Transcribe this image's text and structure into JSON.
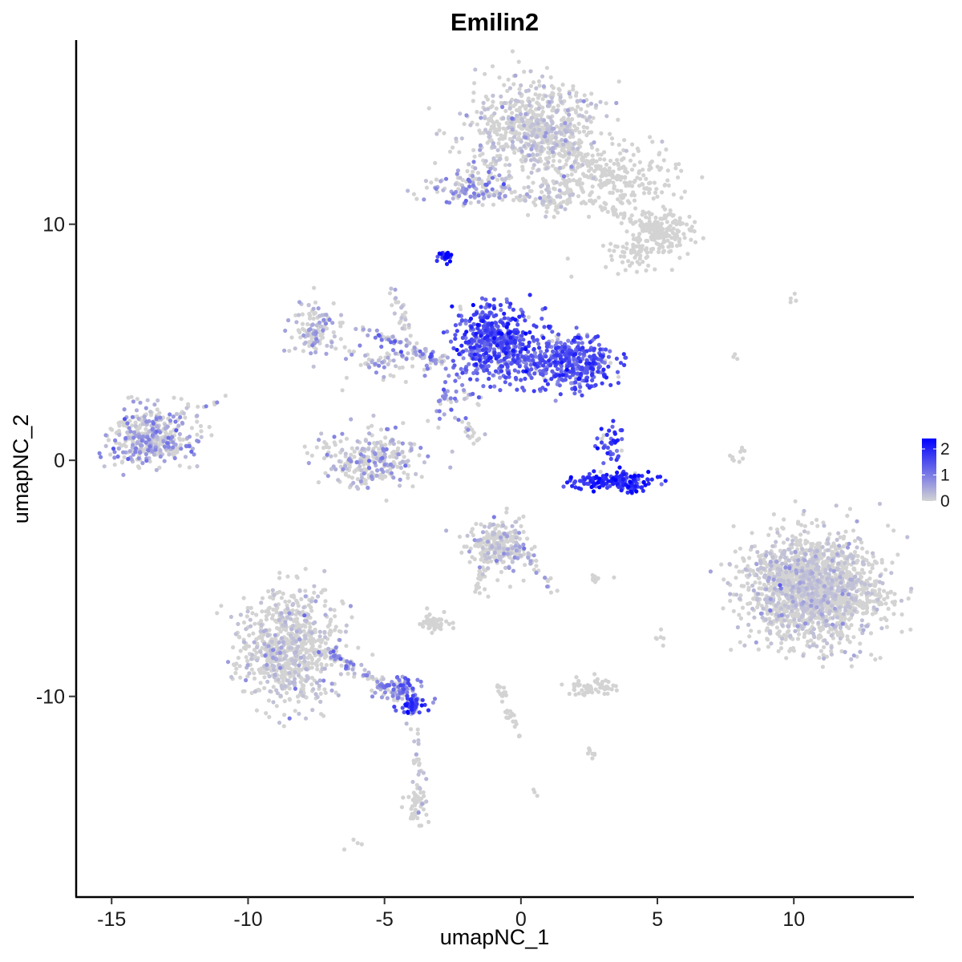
{
  "chart_data": {
    "type": "scatter",
    "title": "Emilin2",
    "xlabel": "umapNC_1",
    "ylabel": "umapNC_2",
    "xlim": [
      -16.3,
      14.4
    ],
    "ylim": [
      -18.5,
      17.8
    ],
    "x_ticks": [
      -15,
      -10,
      -5,
      0,
      5,
      10
    ],
    "x_tick_labels": [
      "-15",
      "-10",
      "-5",
      "0",
      "5",
      "10"
    ],
    "y_ticks": [
      -10,
      0,
      10
    ],
    "y_tick_labels": [
      "-10",
      "0",
      "10"
    ],
    "grid": false,
    "legend": {
      "position": "right",
      "type": "colorbar",
      "range": [
        0,
        2.4
      ],
      "ticks": [
        0,
        1,
        2
      ],
      "tick_labels": [
        "0",
        "1",
        "2"
      ],
      "low_color": "#d3d3d3",
      "high_color": "#0000ff"
    },
    "clusters": [
      {
        "cx": 0.5,
        "cy": 14,
        "sx": 1.2,
        "sy": 1.1,
        "n": 700,
        "expr": 0.05
      },
      {
        "cx": 1.2,
        "cy": 11.2,
        "sx": 0.5,
        "sy": 0.4,
        "n": 80,
        "expr": 0.05
      },
      {
        "cx": 3.5,
        "cy": 12.0,
        "sx": 1.2,
        "sy": 0.7,
        "n": 200,
        "expr": 0.0
      },
      {
        "cx": 5.2,
        "cy": 9.6,
        "sx": 0.6,
        "sy": 0.5,
        "n": 150,
        "expr": 0.0
      },
      {
        "cx": 4.2,
        "cy": 8.9,
        "sx": 0.6,
        "sy": 0.4,
        "n": 60,
        "expr": 0.0
      },
      {
        "cx": -2.0,
        "cy": 11.6,
        "sx": 0.8,
        "sy": 0.4,
        "n": 120,
        "expr": 0.6
      },
      {
        "cx": -2.8,
        "cy": 8.6,
        "sx": 0.15,
        "sy": 0.15,
        "n": 25,
        "expr": 2.0
      },
      {
        "cx": -7.5,
        "cy": 5.6,
        "sx": 0.5,
        "sy": 0.6,
        "n": 120,
        "expr": 0.4
      },
      {
        "cx": -4.5,
        "cy": 4.2,
        "sx": 1.0,
        "sy": 0.4,
        "n": 80,
        "expr": 0.7
      },
      {
        "cx": -2.5,
        "cy": 2.5,
        "sx": 0.4,
        "sy": 0.5,
        "n": 40,
        "expr": 0.8
      },
      {
        "cx": -1.0,
        "cy": 5.4,
        "sx": 0.7,
        "sy": 0.6,
        "n": 320,
        "expr": 1.5
      },
      {
        "cx": -0.5,
        "cy": 4.2,
        "sx": 1.0,
        "sy": 0.6,
        "n": 280,
        "expr": 1.3
      },
      {
        "cx": 2.0,
        "cy": 4.2,
        "sx": 0.7,
        "sy": 0.6,
        "n": 320,
        "expr": 1.4
      },
      {
        "cx": -13.5,
        "cy": 1.0,
        "sx": 0.7,
        "sy": 0.6,
        "n": 420,
        "expr": 0.5
      },
      {
        "cx": -5.5,
        "cy": 0.0,
        "sx": 0.9,
        "sy": 0.6,
        "n": 280,
        "expr": 0.4
      },
      {
        "cx": 3.5,
        "cy": -0.9,
        "sx": 0.7,
        "sy": 0.2,
        "n": 170,
        "expr": 1.9
      },
      {
        "cx": 3.2,
        "cy": 0.8,
        "sx": 0.3,
        "sy": 0.4,
        "n": 40,
        "expr": 1.6
      },
      {
        "cx": 10.7,
        "cy": -5.5,
        "sx": 1.2,
        "sy": 1.1,
        "n": 1800,
        "expr": 0.03
      },
      {
        "cx": -0.8,
        "cy": -3.6,
        "sx": 0.6,
        "sy": 0.5,
        "n": 250,
        "expr": 0.1
      },
      {
        "cx": -8.5,
        "cy": -8.0,
        "sx": 0.9,
        "sy": 1.2,
        "n": 750,
        "expr": 0.03
      },
      {
        "cx": -4.5,
        "cy": -9.7,
        "sx": 0.6,
        "sy": 0.3,
        "n": 80,
        "expr": 1.0
      },
      {
        "cx": -4.0,
        "cy": -10.4,
        "sx": 0.2,
        "sy": 0.2,
        "n": 40,
        "expr": 1.7
      },
      {
        "cx": 2.6,
        "cy": -9.6,
        "sx": 0.4,
        "sy": 0.2,
        "n": 60,
        "expr": 0.0
      },
      {
        "cx": -3.2,
        "cy": -6.9,
        "sx": 0.3,
        "sy": 0.2,
        "n": 50,
        "expr": 0.0
      },
      {
        "cx": -3.8,
        "cy": -14.6,
        "sx": 0.2,
        "sy": 0.4,
        "n": 40,
        "expr": 0.0
      }
    ],
    "trails": [
      {
        "x0": 0.4,
        "y0": 14,
        "x1": 3.5,
        "y1": 12,
        "n": 90,
        "expr": 0.0
      },
      {
        "x0": -1.5,
        "y0": 11.4,
        "x1": 1.0,
        "y1": 11.0,
        "n": 40,
        "expr": 0.3
      },
      {
        "x0": 2.5,
        "y0": 11,
        "x1": 5.3,
        "y1": 9.6,
        "n": 60,
        "expr": 0.0
      },
      {
        "x0": -4.8,
        "y0": 7.4,
        "x1": -3.8,
        "y1": 4.5,
        "n": 30,
        "expr": 0.1
      },
      {
        "x0": -5.8,
        "y0": 5.6,
        "x1": -2.8,
        "y1": 4.1,
        "n": 50,
        "expr": 0.6
      },
      {
        "x0": -2.2,
        "y0": 1.5,
        "x1": -1.5,
        "y1": 0.7,
        "n": 15,
        "expr": 0.1
      },
      {
        "x0": -12.5,
        "y0": 2.0,
        "x1": -11.0,
        "y1": 2.6,
        "n": 10,
        "expr": 0.3
      },
      {
        "x0": -7.5,
        "y0": -7.8,
        "x1": -4.2,
        "y1": -10.2,
        "n": 90,
        "expr": 0.6
      },
      {
        "x0": -4.0,
        "y0": -10.4,
        "x1": -3.6,
        "y1": -15.0,
        "n": 40,
        "expr": 0.4
      },
      {
        "x0": -1.4,
        "y0": -4.0,
        "x1": -1.6,
        "y1": -6.0,
        "n": 25,
        "expr": 0.0
      },
      {
        "x0": -0.2,
        "y0": -3.5,
        "x1": 1.2,
        "y1": -5.5,
        "n": 30,
        "expr": 0.4
      },
      {
        "x0": -0.9,
        "y0": -9.2,
        "x1": -0.1,
        "y1": -11.8,
        "n": 30,
        "expr": 0.0
      },
      {
        "x0": 8.2,
        "y0": 0.7,
        "x1": 7.8,
        "y1": 0.0,
        "n": 10,
        "expr": 0.0
      },
      {
        "x0": 7.7,
        "y0": 4.6,
        "x1": 7.9,
        "y1": 4.3,
        "n": 3,
        "expr": 0.0
      },
      {
        "x0": 9.5,
        "y0": 6.7,
        "x1": 10.0,
        "y1": 6.8,
        "n": 4,
        "expr": 0.0
      },
      {
        "x0": 2.4,
        "y0": -12.3,
        "x1": 2.6,
        "y1": -12.5,
        "n": 8,
        "expr": 0.0
      },
      {
        "x0": 5.0,
        "y0": -7.2,
        "x1": 5.1,
        "y1": -7.8,
        "n": 6,
        "expr": 0.0
      },
      {
        "x0": 2.6,
        "y0": -5.0,
        "x1": 3.1,
        "y1": -5.1,
        "n": 8,
        "expr": 0.0
      },
      {
        "x0": -6.0,
        "y0": -16.2,
        "x1": -6.2,
        "y1": -16.4,
        "n": 4,
        "expr": 0.0
      },
      {
        "x0": 0.5,
        "y0": -14.1,
        "x1": 0.6,
        "y1": -14.2,
        "n": 3,
        "expr": 0.0
      }
    ]
  }
}
